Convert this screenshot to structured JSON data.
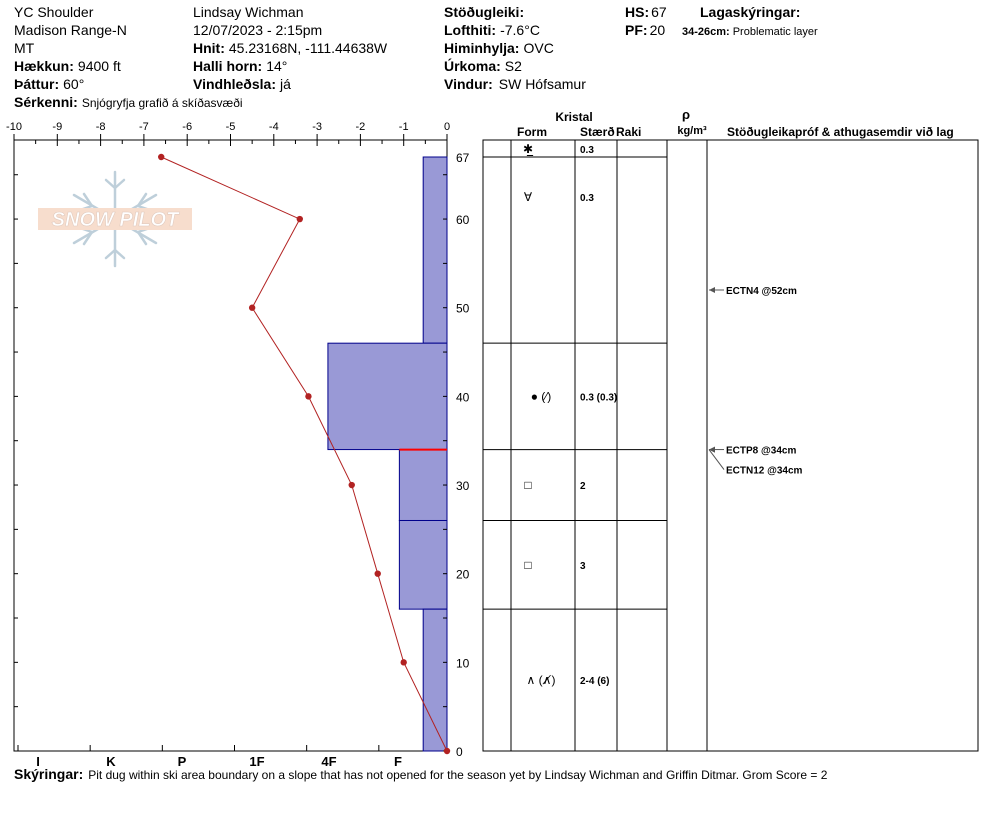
{
  "header": {
    "location": "YC Shoulder",
    "range": "Madison Range-N",
    "state": "MT",
    "elevation_label": "Hækkun:",
    "elevation_value": "9400 ft",
    "aspect_label": "Þáttur:",
    "aspect_value": "60°",
    "observer": "Lindsay Wichman",
    "datetime": "12/07/2023 - 2:15pm",
    "coords_label": "Hnit:",
    "coords_value": "45.23168N, -111.44638W",
    "slope_label": "Halli horn:",
    "slope_value": "14°",
    "wind_loading_label": "Vindhleðsla:",
    "wind_loading_value": "já",
    "stability_label": "Stöðugleiki:",
    "air_temp_label": "Lofthiti:",
    "air_temp_value": "-7.6°C",
    "sky_label": "Himinhylja:",
    "sky_value": "OVC",
    "precip_label": "Úrkoma:",
    "precip_value": "S2",
    "wind_label": "Vindur:",
    "wind_value": "SW Hófsamur",
    "hs_label": "HS:",
    "hs_value": "67",
    "pf_label": "PF:",
    "pf_value": "20",
    "legend_label": "Lagaskýringar:",
    "legend_range": "34-26cm:",
    "legend_text": "Problematic layer",
    "features_label": "Sérkenni:",
    "features_value": "Snjógryfja grafið á skíðasvæði"
  },
  "footer": {
    "notes_label": "Skýringar:",
    "notes_value": "Pit dug within ski area boundary on a slope that has not opened for the season yet by Lindsay Wichman and Griffin Ditmar. Grom Score = 2"
  },
  "logo_text": "SNOW PILOT",
  "table": {
    "kristal_label": "Kristal",
    "form_label": "Form",
    "size_label": "Stærð",
    "moisture_label": "Raki",
    "density_symbol": "ρ",
    "density_unit": "kg/m³",
    "tests_label": "Stöðugleikapróf & athugasemdir við lag"
  },
  "chart_data": {
    "type": "snow-profile",
    "temp_axis_ticks": [
      "-10",
      "-9",
      "-8",
      "-7",
      "-6",
      "-5",
      "-4",
      "-3",
      "-2",
      "-1",
      "0"
    ],
    "temp_xlim": [
      -10,
      0
    ],
    "depth_ylim": [
      0,
      67
    ],
    "depth_ticks": [
      {
        "value": 67,
        "label": "67"
      },
      {
        "value": 60,
        "label": "60"
      },
      {
        "value": 50,
        "label": "50"
      },
      {
        "value": 40,
        "label": "40"
      },
      {
        "value": 30,
        "label": "30"
      },
      {
        "value": 20,
        "label": "20"
      },
      {
        "value": 10,
        "label": "10"
      },
      {
        "value": 0,
        "label": "0"
      }
    ],
    "hardness_scale": [
      {
        "label": "I",
        "value": 0.5
      },
      {
        "label": "K",
        "value": 1.5
      },
      {
        "label": "P",
        "value": 2.5
      },
      {
        "label": "1F",
        "value": 3.5
      },
      {
        "label": "4F",
        "value": 4.5
      },
      {
        "label": "F",
        "value": 5.5
      }
    ],
    "temperature_profile": [
      {
        "depth": 67,
        "temp": -6.6
      },
      {
        "depth": 60,
        "temp": -3.4
      },
      {
        "depth": 50,
        "temp": -4.5
      },
      {
        "depth": 40,
        "temp": -3.2
      },
      {
        "depth": 30,
        "temp": -2.2
      },
      {
        "depth": 20,
        "temp": -1.6
      },
      {
        "depth": 10,
        "temp": -1.0
      },
      {
        "depth": 0,
        "temp": 0.0
      }
    ],
    "layers": [
      {
        "top": 67,
        "bottom": 46,
        "hardness": "F",
        "hardness_value": 0.55,
        "form": "✱̲",
        "size": "0.3"
      },
      {
        "top": 46,
        "bottom": 34,
        "hardness": "4F",
        "hardness_value": 2.75,
        "form": "● (⁄)",
        "size": "0.3 (0.3)"
      },
      {
        "top": 34,
        "bottom": 26,
        "hardness": "F",
        "hardness_value": 1.1,
        "form": "□",
        "size": "2",
        "problematic": true
      },
      {
        "top": 26,
        "bottom": 16,
        "hardness": "F",
        "hardness_value": 1.1,
        "form": "□",
        "size": "3",
        "problematic": true
      },
      {
        "top": 16,
        "bottom": 0,
        "hardness": "F",
        "hardness_value": 0.55,
        "form": "∧ (∧̸)",
        "size": "2-4 (6)"
      }
    ],
    "sublayer_symbols": [
      {
        "depth": 62.5,
        "symbol": "∀",
        "size": "0.3"
      }
    ],
    "stability_tests": [
      {
        "depth": 52,
        "label": "ECTN4 @52cm"
      },
      {
        "depth": 34,
        "label": "ECTP8 @34cm"
      },
      {
        "depth": 34,
        "label": "ECTN12 @34cm"
      }
    ],
    "colors": {
      "hardness_fill": "#9999d6",
      "hardness_stroke": "#00008b",
      "temperature": "#b22222",
      "problematic": "#ff0000"
    }
  }
}
